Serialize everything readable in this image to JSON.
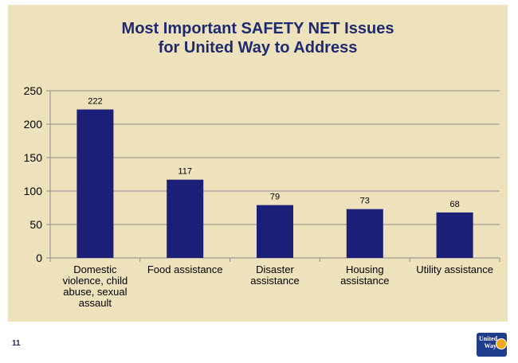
{
  "chart_data": {
    "type": "bar",
    "title_lines": [
      "Most Important SAFETY NET Issues",
      "for United Way to Address"
    ],
    "categories": [
      [
        "Domestic",
        "violence, child",
        "abuse, sexual",
        "assault"
      ],
      [
        "Food assistance"
      ],
      [
        "Disaster",
        "assistance"
      ],
      [
        "Housing",
        "assistance"
      ],
      [
        "Utility assistance"
      ]
    ],
    "values": [
      222,
      117,
      79,
      73,
      68
    ],
    "data_labels": [
      "222",
      "117",
      "79",
      "73",
      "68"
    ],
    "ylim": [
      0,
      250
    ],
    "yticks": [
      0,
      50,
      100,
      150,
      200,
      250
    ],
    "grid": true,
    "legend": "none",
    "colors": {
      "bar": "#1b1f78",
      "grid": "#8c8c8c",
      "background": "#eee2bc",
      "title": "#1f2a6e"
    }
  },
  "footer": {
    "page_number": "11",
    "logo_text": [
      "United",
      "Way"
    ]
  }
}
